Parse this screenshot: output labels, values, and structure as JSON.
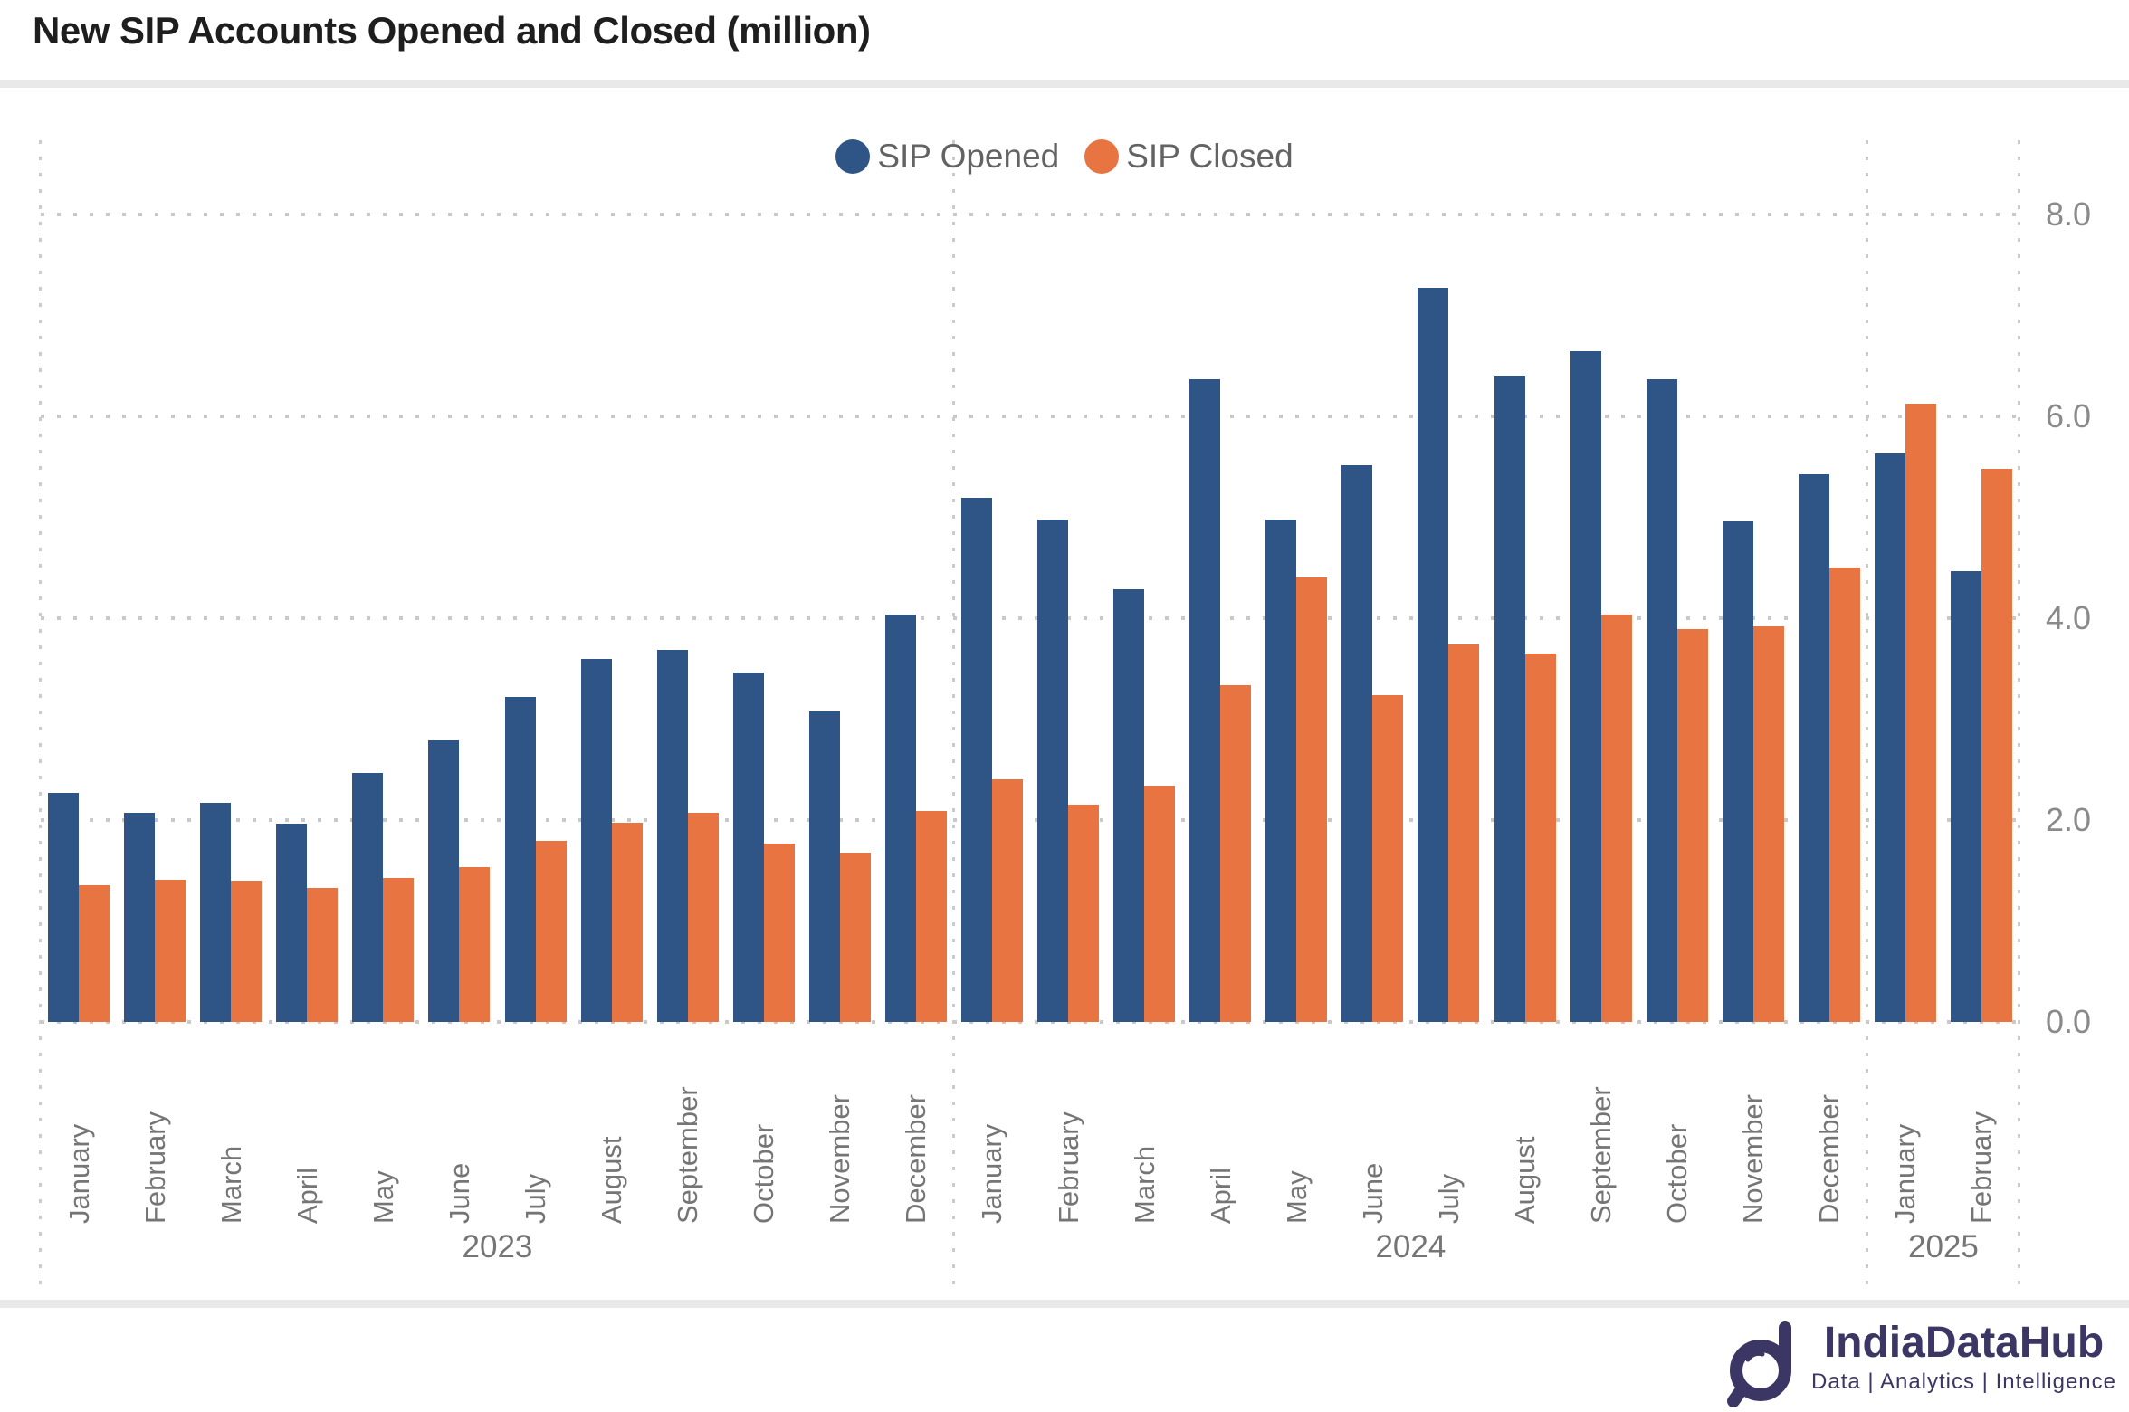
{
  "title": "New SIP Accounts Opened and Closed (million)",
  "legend": {
    "opened_label": "SIP Opened",
    "closed_label": "SIP Closed"
  },
  "colors": {
    "opened": "#2E5586",
    "closed": "#E77441",
    "grid_dot": "#c9c9c9",
    "axis_text": "#8a8a8a",
    "label_text": "#757575",
    "brand_navy": "#3b3663"
  },
  "chart_data": {
    "type": "bar",
    "title": "New SIP Accounts Opened and Closed (million)",
    "xlabel": "",
    "ylabel": "",
    "ylim": [
      0,
      8
    ],
    "yticks": [
      "0.0",
      "2.0",
      "4.0",
      "6.0",
      "8.0"
    ],
    "grid": "horizontal-dotted",
    "legend_position": "top-center",
    "categories": [
      "January",
      "February",
      "March",
      "April",
      "May",
      "June",
      "July",
      "August",
      "September",
      "October",
      "November",
      "December",
      "January",
      "February",
      "March",
      "April",
      "May",
      "June",
      "July",
      "August",
      "September",
      "October",
      "November",
      "December",
      "January",
      "February"
    ],
    "year_groups": [
      {
        "year": "2023",
        "count": 12
      },
      {
        "year": "2024",
        "count": 12
      },
      {
        "year": "2025",
        "count": 2
      }
    ],
    "series": [
      {
        "name": "SIP Opened",
        "color": "#2E5586",
        "values": [
          2.27,
          2.07,
          2.17,
          1.96,
          2.47,
          2.79,
          3.22,
          3.6,
          3.69,
          3.46,
          3.08,
          4.04,
          5.19,
          4.98,
          4.29,
          6.37,
          4.98,
          5.52,
          7.27,
          6.4,
          6.65,
          6.37,
          4.96,
          5.43,
          5.63,
          4.47
        ]
      },
      {
        "name": "SIP Closed",
        "color": "#E77441",
        "values": [
          1.35,
          1.41,
          1.4,
          1.33,
          1.43,
          1.53,
          1.79,
          1.97,
          2.07,
          1.77,
          1.68,
          2.09,
          2.4,
          2.15,
          2.34,
          3.34,
          4.4,
          3.24,
          3.74,
          3.65,
          4.04,
          3.89,
          3.92,
          4.5,
          6.13,
          5.48
        ]
      }
    ]
  },
  "footer": {
    "brand": "IndiaDataHub",
    "tagline": "Data | Analytics | Intelligence"
  }
}
